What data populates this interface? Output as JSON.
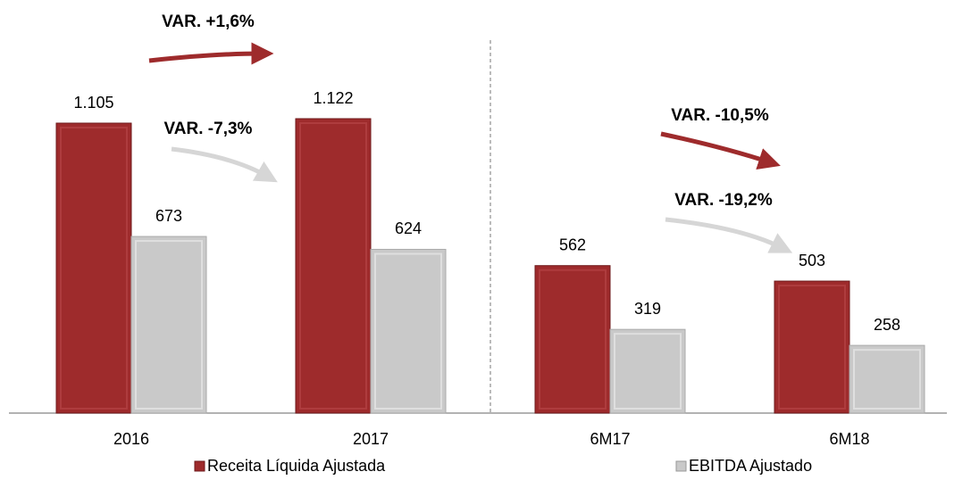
{
  "chart_data": {
    "type": "bar",
    "categories": [
      "2016",
      "2017",
      "6M17",
      "6M18"
    ],
    "series": [
      {
        "name": "Receita Líquida Ajustada",
        "color": "#9e2b2c",
        "values": [
          1105,
          1122,
          562,
          503
        ],
        "value_labels": [
          "1.105",
          "1.122",
          "562",
          "503"
        ]
      },
      {
        "name": "EBITDA Ajustado",
        "color": "#c9c9c9",
        "values": [
          673,
          624,
          319,
          258
        ]
      }
    ],
    "annotations": [
      "VAR. +1,6%",
      "VAR. -7,3%",
      "VAR. -10,5%",
      "VAR. -19,2%"
    ],
    "legend": "bottom"
  }
}
